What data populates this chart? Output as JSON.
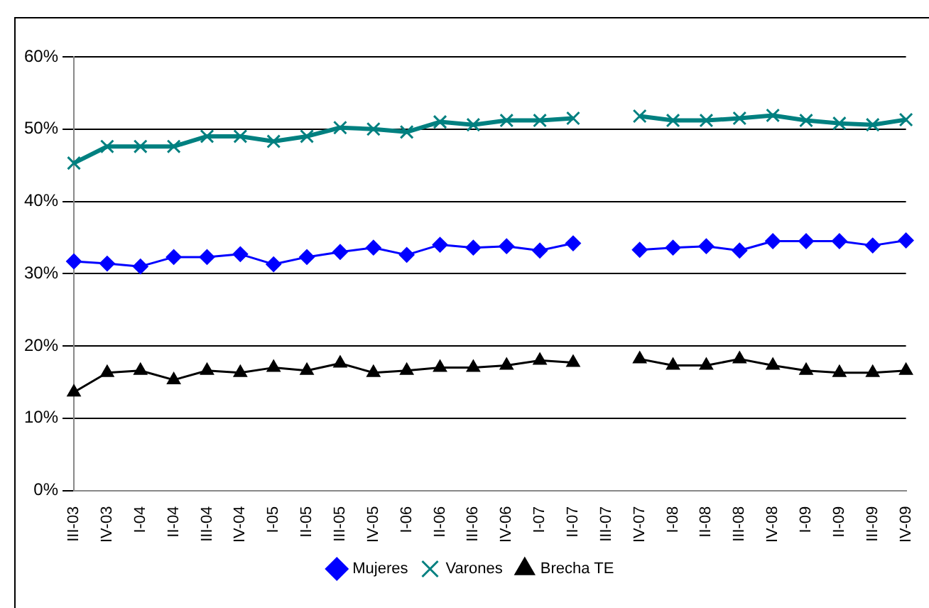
{
  "chart_data": {
    "type": "line",
    "categories": [
      "III-03",
      "IV-03",
      "I-04",
      "II-04",
      "III-04",
      "IV-04",
      "I-05",
      "II-05",
      "III-05",
      "IV-05",
      "I-06",
      "II-06",
      "III-06",
      "IV-06",
      "I-07",
      "II-07",
      "III-07",
      "IV-07",
      "I-08",
      "II-08",
      "III-08",
      "IV-08",
      "I-09",
      "II-09",
      "III-09",
      "IV-09"
    ],
    "series": [
      {
        "name": "Mujeres",
        "color": "#0000ff",
        "marker": "diamond",
        "values": [
          31.7,
          31.4,
          31.0,
          32.3,
          32.3,
          32.7,
          31.3,
          32.3,
          33.0,
          33.6,
          32.6,
          34.0,
          33.6,
          33.8,
          33.2,
          34.2,
          null,
          33.3,
          33.6,
          33.8,
          33.2,
          34.5,
          34.5,
          34.5,
          33.9,
          34.6
        ]
      },
      {
        "name": "Varones",
        "color": "#008080",
        "marker": "cross",
        "values": [
          45.3,
          47.6,
          47.6,
          47.6,
          49.0,
          49.0,
          48.3,
          49.0,
          50.2,
          50.0,
          49.6,
          51.0,
          50.6,
          51.2,
          51.2,
          51.5,
          null,
          51.8,
          51.2,
          51.2,
          51.5,
          51.9,
          51.2,
          50.8,
          50.6,
          51.3
        ]
      },
      {
        "name": "Brecha TE",
        "color": "#000000",
        "marker": "triangle",
        "values": [
          13.6,
          16.3,
          16.6,
          15.3,
          16.6,
          16.3,
          17.0,
          16.6,
          17.6,
          16.3,
          16.6,
          17.0,
          17.0,
          17.3,
          18.0,
          17.7,
          null,
          18.2,
          17.3,
          17.3,
          18.2,
          17.3,
          16.6,
          16.3,
          16.3,
          16.6
        ]
      }
    ],
    "ylim": [
      0,
      60
    ],
    "yticks": [
      {
        "value": 0,
        "label": "0%"
      },
      {
        "value": 10,
        "label": "10%"
      },
      {
        "value": 20,
        "label": "20%"
      },
      {
        "value": 30,
        "label": "30%"
      },
      {
        "value": 40,
        "label": "40%"
      },
      {
        "value": 50,
        "label": "50%"
      },
      {
        "value": 60,
        "label": "60%"
      }
    ],
    "grid": "y",
    "legend": "bottom",
    "line_style": "solid"
  }
}
